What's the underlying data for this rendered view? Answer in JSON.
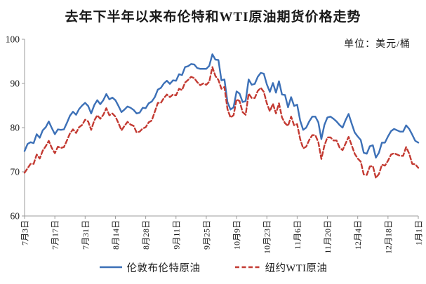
{
  "title": "去年下半年以来布伦特和WTI原油期货价格走势",
  "unit_label": "单位：美元/桶",
  "colors": {
    "brent_line": "#3c70b7",
    "wti_line": "#c33a32",
    "axis": "#9b9b9b",
    "text": "#1a1a1a"
  },
  "legend": [
    {
      "label": "伦敦布伦特原油",
      "color": "#3c70b7",
      "style": "solid"
    },
    {
      "label": "纽约WTI原油",
      "color": "#c33a32",
      "style": "dashed"
    }
  ],
  "chart_data": {
    "type": "line",
    "title": "去年下半年以来布伦特和WTI原油期货价格走势",
    "ylabel": "美元/桶",
    "ylim": [
      60,
      100
    ],
    "y_ticks": [
      100,
      90,
      80,
      70,
      60
    ],
    "grid": false,
    "legend_position": "bottom",
    "x_tick_labels": [
      "7月3日",
      "7月17日",
      "7月31日",
      "8月14日",
      "8月28日",
      "9月11日",
      "9月25日",
      "10月9日",
      "10月23日",
      "11月6日",
      "11月20日",
      "12月4日",
      "12月18日",
      "1月1日"
    ],
    "points_per_tick": 10,
    "series": [
      {
        "name": "伦敦布伦特原油",
        "color": "#3c70b7",
        "style": "solid",
        "values": [
          74.7,
          76.3,
          76.7,
          76.5,
          78.5,
          77.7,
          79.4,
          80.1,
          81.4,
          79.9,
          78.5,
          79.6,
          79.5,
          79.6,
          81.1,
          82.7,
          83.6,
          82.9,
          84.2,
          85.0,
          85.6,
          84.9,
          83.2,
          85.1,
          86.2,
          85.3,
          86.2,
          87.6,
          86.4,
          86.8,
          86.2,
          84.9,
          83.5,
          84.1,
          84.8,
          84.5,
          84.0,
          83.2,
          83.4,
          84.5,
          84.4,
          85.5,
          85.9,
          86.9,
          88.6,
          89.0,
          90.0,
          90.6,
          89.9,
          90.7,
          90.6,
          92.1,
          91.9,
          93.7,
          93.9,
          94.4,
          94.3,
          93.5,
          93.3,
          93.3,
          93.3,
          94.0,
          96.6,
          95.4,
          95.3,
          90.7,
          90.9,
          85.8,
          84.1,
          84.6,
          88.2,
          87.7,
          85.8,
          86.0,
          90.9,
          89.7,
          89.9,
          91.5,
          92.4,
          92.2,
          89.8,
          88.1,
          90.1,
          87.9,
          90.5,
          87.5,
          87.4,
          84.6,
          86.9,
          84.9,
          85.2,
          81.6,
          79.5,
          80.0,
          81.4,
          82.5,
          82.5,
          81.2,
          77.4,
          80.6,
          82.3,
          82.5,
          82.0,
          81.4,
          80.6,
          80.0,
          81.7,
          83.1,
          80.9,
          78.9,
          78.0,
          77.2,
          74.3,
          74.1,
          75.8,
          76.0,
          73.2,
          74.3,
          76.6,
          76.6,
          78.0,
          79.2,
          79.7,
          79.4,
          79.1,
          79.1,
          80.5,
          79.7,
          78.4,
          77.0,
          76.6
        ]
      },
      {
        "name": "纽约WTI原油",
        "color": "#c33a32",
        "style": "dashed",
        "values": [
          69.8,
          70.8,
          71.8,
          71.8,
          73.9,
          73.0,
          74.8,
          75.8,
          77.0,
          75.4,
          74.2,
          75.7,
          75.4,
          75.6,
          77.1,
          78.7,
          79.6,
          78.8,
          80.1,
          80.6,
          81.8,
          81.4,
          79.5,
          81.6,
          82.8,
          82.0,
          82.9,
          84.4,
          82.8,
          83.2,
          82.5,
          81.0,
          79.4,
          80.4,
          81.3,
          80.7,
          80.4,
          78.9,
          79.1,
          79.8,
          80.1,
          81.2,
          81.6,
          83.6,
          85.6,
          85.6,
          86.7,
          87.5,
          86.9,
          87.5,
          87.3,
          88.8,
          88.5,
          90.2,
          90.8,
          91.5,
          91.2,
          90.3,
          89.6,
          90.0,
          89.7,
          90.4,
          93.7,
          91.7,
          90.8,
          88.8,
          89.2,
          84.2,
          82.3,
          82.8,
          86.4,
          86.0,
          83.5,
          82.9,
          87.7,
          86.7,
          86.7,
          88.3,
          89.0,
          88.1,
          85.5,
          83.7,
          85.4,
          83.2,
          85.5,
          82.3,
          81.0,
          80.4,
          82.5,
          80.5,
          80.8,
          77.4,
          75.3,
          75.7,
          77.2,
          78.3,
          78.3,
          76.7,
          72.9,
          75.9,
          77.8,
          77.8,
          77.1,
          77.1,
          75.5,
          74.9,
          76.4,
          77.9,
          76.0,
          74.1,
          73.0,
          72.3,
          69.4,
          69.3,
          71.2,
          71.3,
          68.6,
          69.5,
          71.6,
          71.4,
          72.5,
          73.9,
          74.2,
          73.9,
          73.6,
          73.6,
          75.6,
          74.1,
          71.8,
          71.7,
          70.9
        ]
      }
    ]
  }
}
